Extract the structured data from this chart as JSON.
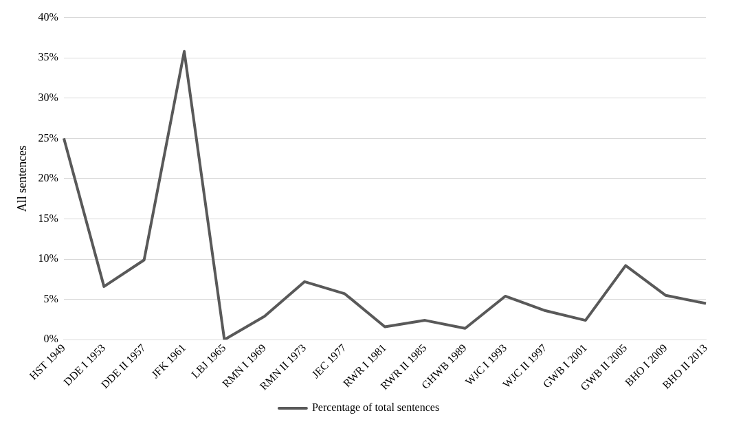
{
  "chart_data": {
    "type": "line",
    "ylabel": "All sentences",
    "categories": [
      "HST 1949",
      "DDE I 1953",
      "DDE II 1957",
      "JFK 1961",
      "LBJ 1965",
      "RMN I 1969",
      "RMN II 1973",
      "JEC 1977",
      "RWR I 1981",
      "RWR II 1985",
      "GHWB 1989",
      "WJC I 1993",
      "WJC II 1997",
      "GWB I 2001",
      "GWB II 2005",
      "BHO I 2009",
      "BHO II 2013"
    ],
    "series": [
      {
        "name": "Percentage of total sentences",
        "color": "#595959",
        "values": [
          25,
          6.6,
          9.9,
          35.8,
          0,
          2.9,
          7.2,
          5.7,
          1.6,
          2.4,
          1.4,
          5.4,
          3.6,
          2.4,
          9.2,
          5.5,
          4.5
        ]
      }
    ],
    "ylim": [
      0,
      40
    ],
    "yticks": [
      {
        "value": 0,
        "label": "0%"
      },
      {
        "value": 5,
        "label": "5%"
      },
      {
        "value": 10,
        "label": "10%"
      },
      {
        "value": 15,
        "label": "15%"
      },
      {
        "value": 20,
        "label": "20%"
      },
      {
        "value": 25,
        "label": "25%"
      },
      {
        "value": 30,
        "label": "30%"
      },
      {
        "value": 35,
        "label": "35%"
      },
      {
        "value": 40,
        "label": "40%"
      }
    ],
    "grid": "y",
    "legend": "bottom",
    "marker": "none",
    "line_style": "solid"
  }
}
